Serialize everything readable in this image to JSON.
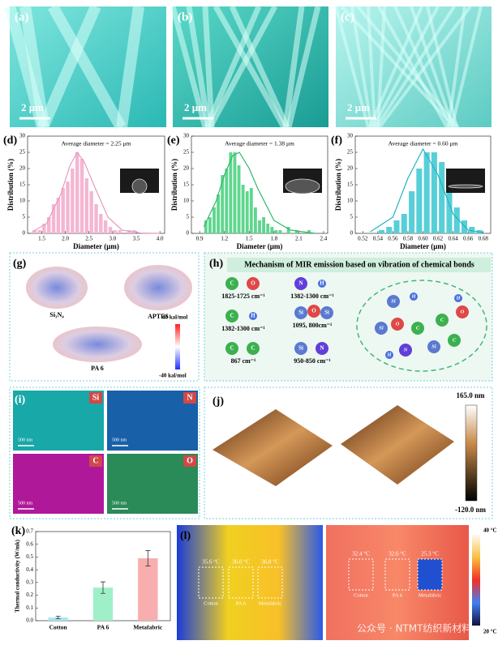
{
  "image_panels": [
    {
      "label": "(a)",
      "scale_bar": "2 μm"
    },
    {
      "label": "(b)",
      "scale_bar": "2 μm"
    },
    {
      "label": "(c)",
      "scale_bar": "2 μm"
    }
  ],
  "chart_data": [
    {
      "type": "histogram",
      "panel_label": "(d)",
      "annotation": "Average diameter = 2.25 μm",
      "x_label": "Diameter (μm)",
      "y_label": "Distribution (%)",
      "color": "#f4b6d2",
      "fit_color": "#e89ac0",
      "bins": [
        1.3,
        1.4,
        1.5,
        1.6,
        1.7,
        1.8,
        1.9,
        2.0,
        2.1,
        2.2,
        2.3,
        2.4,
        2.5,
        2.6,
        2.7,
        2.8,
        2.9,
        3.0,
        3.1,
        3.2,
        3.3,
        3.4,
        3.5
      ],
      "counts": [
        1,
        1,
        3,
        5,
        9,
        11,
        14,
        16,
        20,
        25,
        23,
        17,
        13,
        9,
        6,
        4,
        2,
        1,
        1,
        0,
        1,
        1
      ],
      "fit": {
        "x": [
          1.3,
          1.6,
          1.9,
          2.1,
          2.25,
          2.4,
          2.6,
          2.9,
          3.2,
          3.6,
          4.0
        ],
        "y": [
          0.5,
          3,
          12,
          21,
          25,
          22,
          15,
          5,
          1,
          0.1,
          0
        ]
      },
      "xlim": [
        1.2,
        4.1
      ],
      "xticks": [
        1.5,
        {
          "value": 2,
          "label": "2.0"
        },
        2.5,
        {
          "value": 3,
          "label": "3.0"
        },
        3.5,
        {
          "value": 4,
          "label": "4.0"
        }
      ],
      "ylim": [
        0,
        30
      ],
      "yticks": [
        0,
        5,
        10,
        15,
        20,
        25,
        30
      ]
    },
    {
      "type": "histogram",
      "panel_label": "(e)",
      "annotation": "Average diameter = 1.38 μm",
      "x_label": "Diameter (μm)",
      "y_label": "Distribution (%)",
      "color": "#5fd68e",
      "fit_color": "#2fb86a",
      "bins": [
        0.95,
        1.0,
        1.05,
        1.1,
        1.15,
        1.2,
        1.25,
        1.3,
        1.35,
        1.4,
        1.45,
        1.5,
        1.55,
        1.6,
        1.65,
        1.7,
        1.75,
        1.8,
        1.85,
        1.9,
        1.95,
        2.0,
        2.05,
        2.1,
        2.15,
        2.2,
        2.25
      ],
      "counts": [
        4,
        5,
        8,
        12,
        18,
        20,
        25,
        25,
        21,
        15,
        13,
        14,
        8,
        4,
        5,
        3,
        2,
        1,
        1,
        0,
        2,
        0,
        1,
        0,
        0,
        1
      ],
      "fit": {
        "x": [
          0.95,
          1.1,
          1.2,
          1.3,
          1.38,
          1.5,
          1.6,
          1.8,
          2.0,
          2.3
        ],
        "y": [
          2,
          10,
          18,
          24,
          25,
          20,
          14,
          4,
          1,
          0
        ]
      },
      "xlim": [
        0.8,
        2.45
      ],
      "xticks": [
        0.9,
        1.2,
        1.5,
        1.8,
        2.1,
        2.4
      ],
      "ylim": [
        0,
        30
      ],
      "yticks": [
        0,
        5,
        10,
        15,
        20,
        25,
        30
      ]
    },
    {
      "type": "histogram",
      "panel_label": "(f)",
      "annotation": "Average diameter = 0.60 μm",
      "x_label": "Diameter (μm)",
      "y_label": "Distribution (%)",
      "color": "#56cfd8",
      "fit_color": "#1fb5c0",
      "bins": [
        0.54,
        0.55,
        0.56,
        0.57,
        0.58,
        0.59,
        0.6,
        0.61,
        0.62,
        0.63,
        0.64,
        0.65,
        0.66,
        0.67,
        0.68
      ],
      "counts": [
        1,
        2,
        4,
        6,
        13,
        20,
        25,
        25,
        22,
        13,
        8,
        4,
        2,
        1
      ],
      "fit": {
        "x": [
          0.53,
          0.56,
          0.58,
          0.6,
          0.62,
          0.64,
          0.66,
          0.68
        ],
        "y": [
          0.5,
          5,
          17,
          26,
          18,
          6,
          1,
          0.2
        ]
      },
      "xlim": [
        0.51,
        0.69
      ],
      "xticks": [
        0.52,
        0.54,
        0.56,
        0.58,
        {
          "value": 0.6,
          "label": "0.60"
        },
        0.62,
        0.64,
        0.66,
        0.68
      ],
      "ylim": [
        0,
        30
      ],
      "yticks": [
        0,
        5,
        10,
        15,
        20,
        25,
        30
      ]
    },
    {
      "type": "bar",
      "panel_label": "(k)",
      "y_label": "Thermal conductivity (W/mk)",
      "categories": [
        "Cotton",
        "PA 6",
        "Metafabric"
      ],
      "values": [
        0.025,
        0.26,
        0.49
      ],
      "errors": [
        0.01,
        0.045,
        0.06
      ],
      "colors": [
        "#a8e6f0",
        "#9ff0c8",
        "#f8aeae"
      ],
      "ylim": [
        0,
        0.7
      ],
      "yticks": [
        {
          "value": 0,
          "label": "0.0"
        },
        0.1,
        0.2,
        0.3,
        0.4,
        0.5,
        0.6,
        0.7
      ]
    }
  ],
  "molecules": {
    "label": "(g)",
    "names": [
      "Si₃N₄",
      "APTES",
      "PA 6"
    ],
    "colorbar": [
      "40 kal/mol",
      "-40 kal/mol"
    ]
  },
  "mechanism": {
    "label": "(h)",
    "title": "Mechanism of MIR emission based on vibration of chemical bonds",
    "bonds": [
      {
        "atoms": [
          "C",
          "O"
        ],
        "range": "1825-1725 cm⁻¹"
      },
      {
        "atoms": [
          "N",
          "H"
        ],
        "range": "1382-1300 cm⁻¹"
      },
      {
        "atoms": [
          "C",
          "H"
        ],
        "range": "1382-1300 cm⁻¹"
      },
      {
        "atoms": [
          "Si",
          "O",
          "Si"
        ],
        "range": "1095, 800cm⁻¹"
      },
      {
        "atoms": [
          "C",
          "C"
        ],
        "range": "867 cm⁻¹"
      },
      {
        "atoms": [
          "Si",
          "N"
        ],
        "range": "950-850 cm⁻¹"
      }
    ],
    "cluster": [
      "Si",
      "H",
      "Si",
      "O",
      "C",
      "C",
      "O",
      "H",
      "N",
      "Si",
      "H",
      "C"
    ]
  },
  "eds": {
    "label": "(i)",
    "maps": [
      {
        "element": "Si",
        "scale_bar": "500 nm"
      },
      {
        "element": "N",
        "scale_bar": "500 nm"
      },
      {
        "element": "C",
        "scale_bar": "500 nm"
      },
      {
        "element": "O",
        "scale_bar": "500 nm"
      }
    ]
  },
  "afm": {
    "label": "(j)",
    "colorbar": [
      "165.0 nm",
      "-120.0 nm"
    ]
  },
  "thermal": {
    "label": "(l)",
    "left": {
      "temps": [
        "35.6 °C",
        "36.0 °C",
        "36.8 °C"
      ],
      "samples": [
        "Cotton",
        "PA 6",
        "Metafabric"
      ]
    },
    "right": {
      "temps": [
        "32.4 °C",
        "32.6 °C",
        "25.3 °C"
      ],
      "samples": [
        "Cotton",
        "PA 6",
        "Metafabric"
      ]
    },
    "colorbar": [
      "40 °C",
      "20 °C"
    ]
  },
  "watermark": "公众号 · NTMT纺织新材料"
}
